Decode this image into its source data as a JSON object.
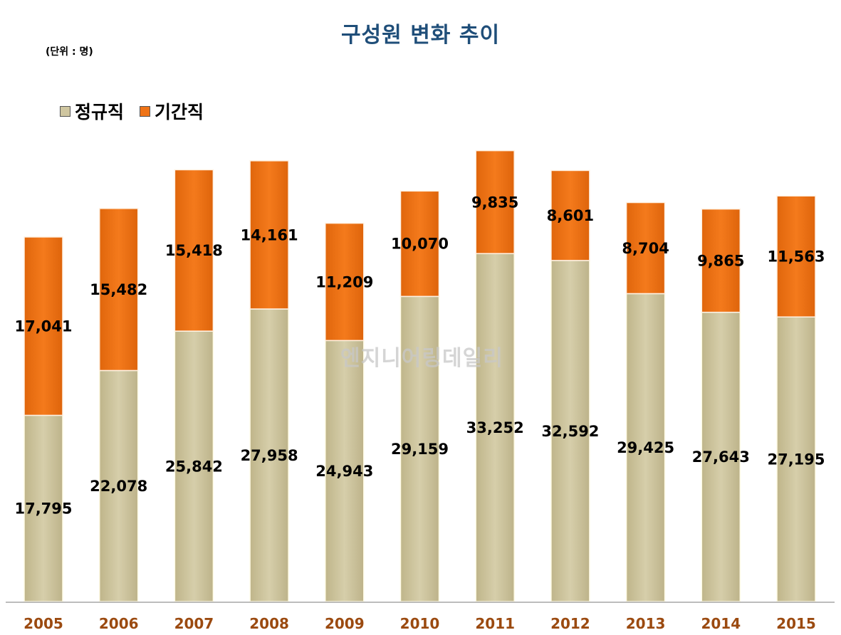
{
  "header": {
    "title": "구성원 변화 추이",
    "unit": "(단위 : 명)"
  },
  "watermark": "엔지니어링데일리",
  "colors": {
    "regular": "#cfc6a0",
    "temporary": "#ef7316",
    "title": "#1f4e79",
    "tick": "#9b4a10"
  },
  "chart_data": {
    "type": "bar",
    "stacked": true,
    "title": "구성원 변화 추이",
    "categories": [
      "2005",
      "2006",
      "2007",
      "2008",
      "2009",
      "2010",
      "2011",
      "2012",
      "2013",
      "2014",
      "2015"
    ],
    "series": [
      {
        "name": "정규직",
        "color": "#cfc6a0",
        "values": [
          17795,
          22078,
          25842,
          27958,
          24943,
          29159,
          33252,
          32592,
          29425,
          27643,
          27195
        ],
        "labels": [
          "17,795",
          "22,078",
          "25,842",
          "27,958",
          "24,943",
          "29,159",
          "33,252",
          "32,592",
          "29,425",
          "27,643",
          "27,195"
        ]
      },
      {
        "name": "기간직",
        "color": "#ef7316",
        "values": [
          17041,
          15482,
          15418,
          14161,
          11209,
          10070,
          9835,
          8601,
          8704,
          9865,
          11563
        ],
        "labels": [
          "17,041",
          "15,482",
          "15,418",
          "14,161",
          "11,209",
          "10,070",
          "9,835",
          "8,601",
          "8,704",
          "9,865",
          "11,563"
        ]
      }
    ],
    "legend": "top-left",
    "grid": false
  }
}
